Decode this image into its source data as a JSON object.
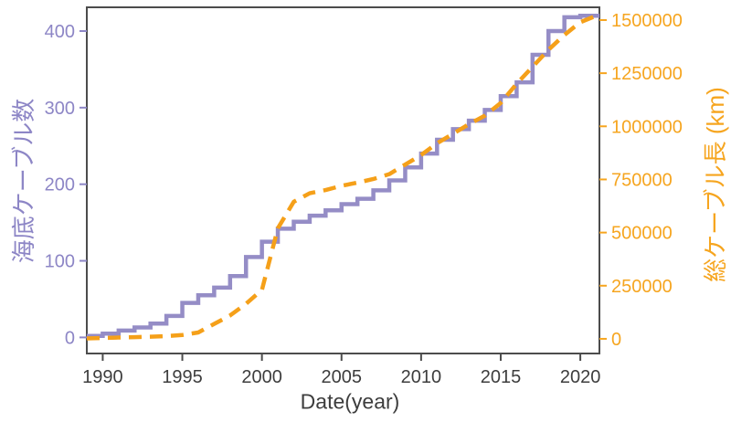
{
  "figure": {
    "background": "#ffffff",
    "frame_color": "#4c4c4c",
    "x_axis": {
      "label": "Date(year)",
      "ticks": [
        1990,
        1995,
        2000,
        2005,
        2010,
        2015,
        2020
      ],
      "text_color": "#3d3d3d"
    },
    "y_left": {
      "label": "海底ケーブル数",
      "ticks": [
        0,
        100,
        200,
        300,
        400
      ],
      "color": "#8d86c6"
    },
    "y_right": {
      "label": "総ケーブル長 (km)",
      "ticks": [
        0,
        250000,
        500000,
        750000,
        1000000,
        1250000,
        1500000
      ],
      "color": "#f6a51f"
    }
  },
  "chart_data": {
    "type": "line",
    "title": "",
    "xlabel": "Date(year)",
    "ylabel_left": "海底ケーブル数",
    "ylabel_right": "総ケーブル長 (km)",
    "grid": false,
    "legend": "none",
    "x_range": [
      1989.0,
      2021.2
    ],
    "y_left_range": [
      -21,
      431
    ],
    "y_right_range": [
      -69000,
      1560000
    ],
    "x": [
      1989,
      1990,
      1991,
      1992,
      1993,
      1994,
      1995,
      1996,
      1997,
      1998,
      1999,
      2000,
      2001,
      2002,
      2003,
      2004,
      2005,
      2006,
      2007,
      2008,
      2009,
      2010,
      2011,
      2012,
      2013,
      2014,
      2015,
      2016,
      2017,
      2018,
      2019,
      2020,
      2021
    ],
    "series": [
      {
        "name": "海底ケーブル数",
        "axis": "left",
        "line_style": "solid-step",
        "color": "#958dc6",
        "values": [
          2,
          5,
          9,
          13,
          18,
          28,
          45,
          55,
          65,
          80,
          105,
          125,
          142,
          151,
          159,
          166,
          174,
          181,
          192,
          205,
          222,
          240,
          258,
          272,
          283,
          297,
          315,
          333,
          369,
          400,
          418,
          420,
          420
        ]
      },
      {
        "name": "総ケーブル長 (km)",
        "axis": "right",
        "line_style": "dashed",
        "color": "#f5a019",
        "values": [
          2000,
          4000,
          6000,
          8000,
          10000,
          13000,
          18000,
          30000,
          70000,
          110000,
          165000,
          230000,
          520000,
          645000,
          685000,
          700000,
          720000,
          735000,
          752000,
          775000,
          820000,
          865000,
          920000,
          965000,
          1010000,
          1050000,
          1110000,
          1200000,
          1280000,
          1360000,
          1430000,
          1490000,
          1520000
        ]
      }
    ]
  }
}
